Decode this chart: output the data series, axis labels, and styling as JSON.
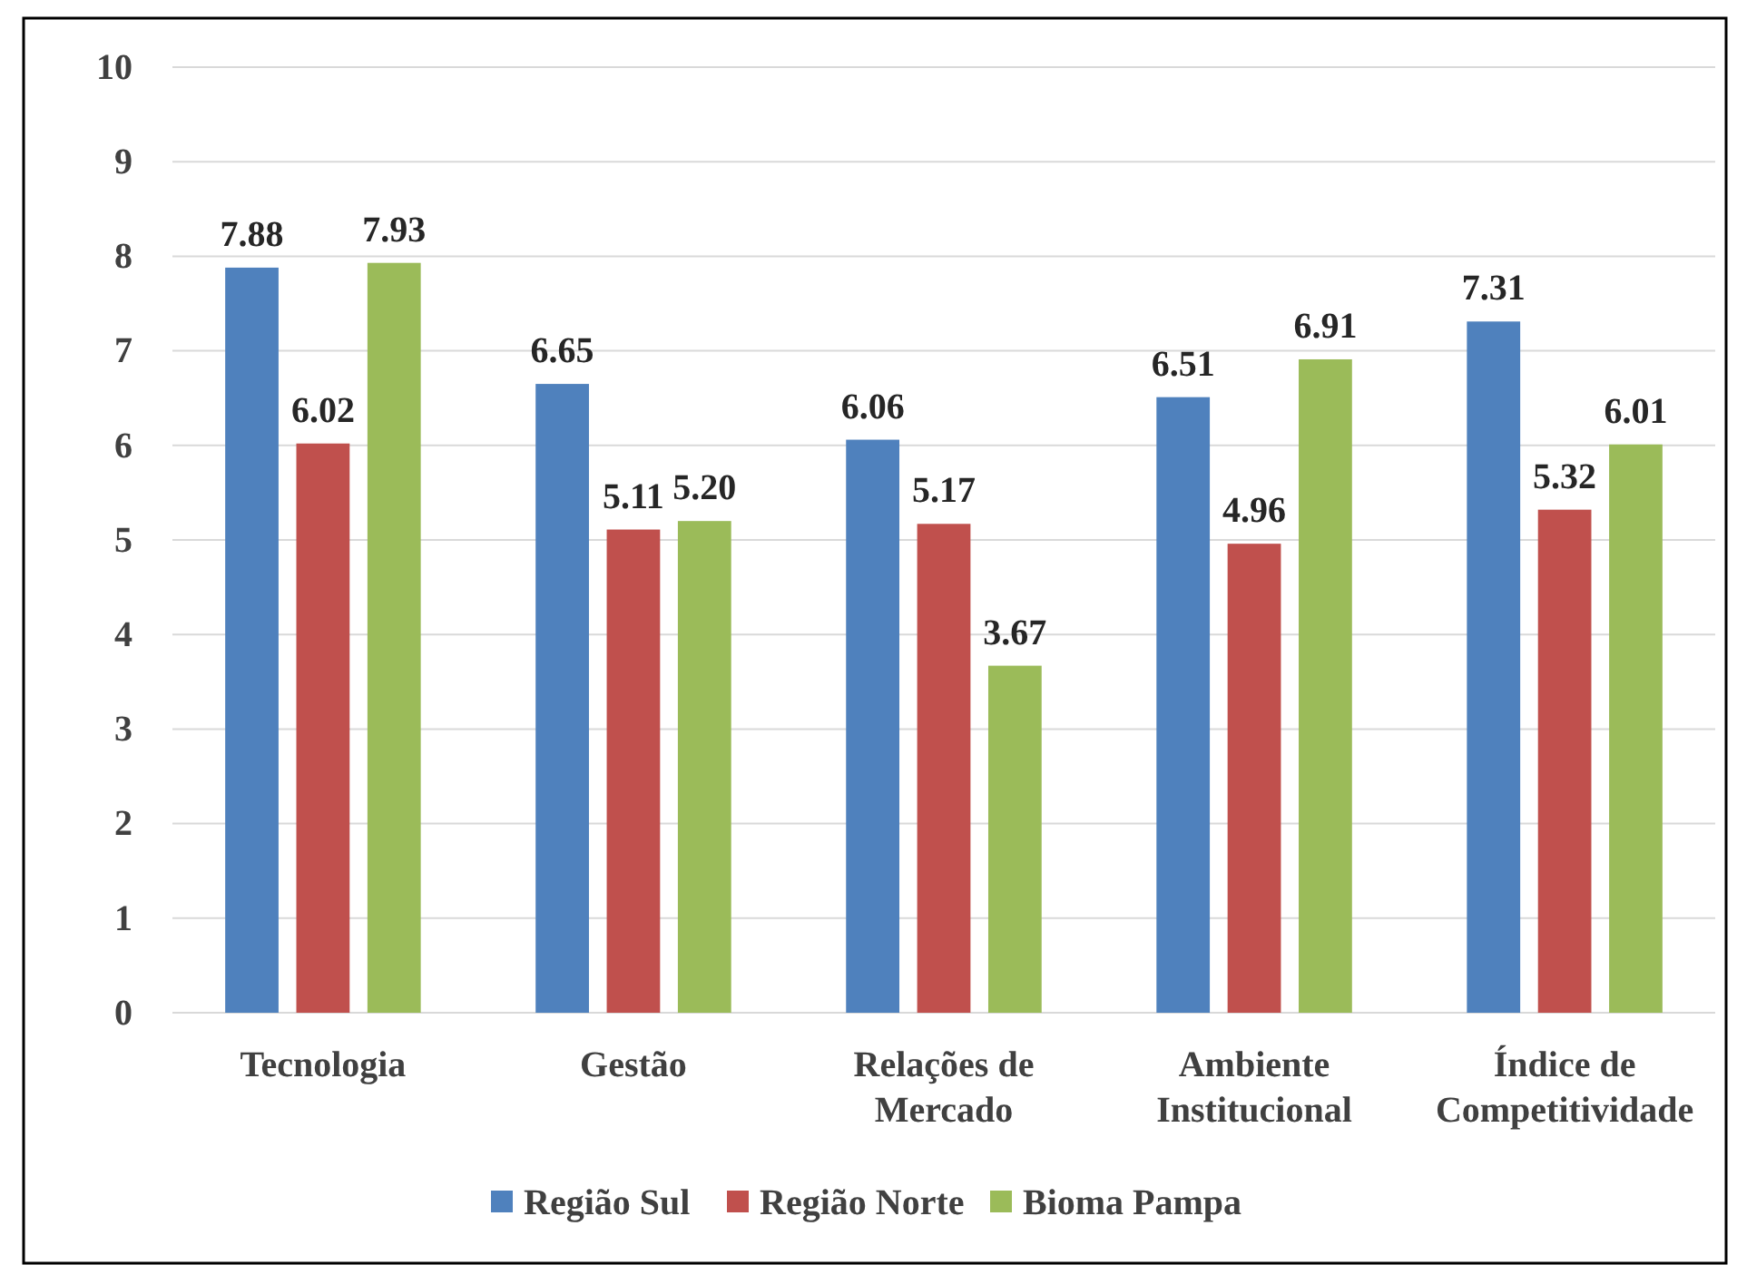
{
  "chart_data": {
    "type": "bar",
    "categories": [
      "Tecnologia",
      "Gestão",
      "Relações de Mercado",
      "Ambiente Institucional",
      "Índice de Competitividade"
    ],
    "series": [
      {
        "name": "Região Sul",
        "color": "#4f81bd",
        "values": [
          7.88,
          6.65,
          6.06,
          6.51,
          7.31
        ]
      },
      {
        "name": "Região Norte",
        "color": "#c0504d",
        "values": [
          6.02,
          5.11,
          5.17,
          4.96,
          5.32
        ]
      },
      {
        "name": "Bioma Pampa",
        "color": "#9bbb59",
        "values": [
          7.93,
          5.2,
          3.67,
          6.91,
          6.01
        ]
      }
    ],
    "value_labels": [
      [
        "7.88",
        "6.65",
        "6.06",
        "6.51",
        "7.31"
      ],
      [
        "6.02",
        "5.11",
        "5.17",
        "4.96",
        "5.32"
      ],
      [
        "7.93",
        "5.20",
        "3.67",
        "6.91",
        "6.01"
      ]
    ],
    "ylim": [
      0,
      10
    ],
    "yticks": [
      0,
      1,
      2,
      3,
      4,
      5,
      6,
      7,
      8,
      9,
      10
    ],
    "grid": "y",
    "legend": "bottom"
  }
}
